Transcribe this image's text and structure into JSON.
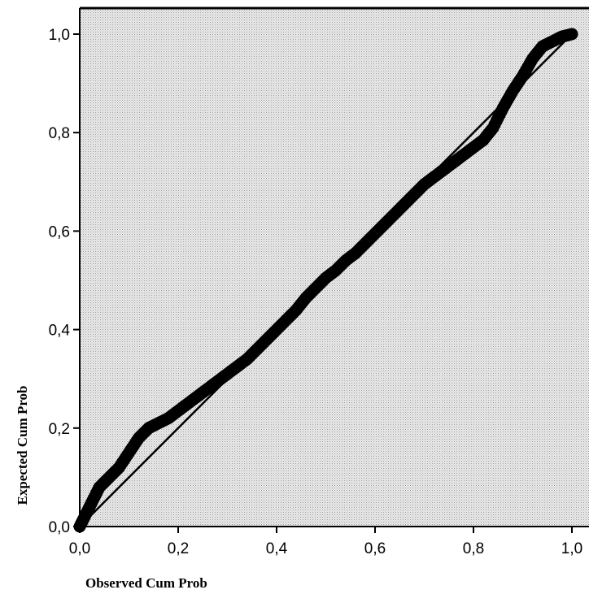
{
  "chart_data": {
    "type": "scatter",
    "title": "",
    "xlabel": "Observed Cum Prob",
    "ylabel": "Expected Cum Prob",
    "xlim": [
      0.0,
      1.0
    ],
    "ylim": [
      0.0,
      1.0
    ],
    "x_ticks": [
      "0,0",
      "0,2",
      "0,4",
      "0,6",
      "0,8",
      "1,0"
    ],
    "y_ticks": [
      "0,0",
      "0,2",
      "0,4",
      "0,6",
      "0,8",
      "1,0"
    ],
    "grid": false,
    "legend": "none",
    "reference_line": {
      "from": [
        0.0,
        0.0
      ],
      "to": [
        1.0,
        1.0
      ]
    },
    "series": [
      {
        "points": [
          [
            0.0,
            0.0
          ],
          [
            0.01,
            0.02
          ],
          [
            0.02,
            0.04
          ],
          [
            0.03,
            0.06
          ],
          [
            0.04,
            0.08
          ],
          [
            0.06,
            0.1
          ],
          [
            0.08,
            0.12
          ],
          [
            0.1,
            0.15
          ],
          [
            0.12,
            0.18
          ],
          [
            0.14,
            0.2
          ],
          [
            0.16,
            0.21
          ],
          [
            0.18,
            0.22
          ],
          [
            0.2,
            0.235
          ],
          [
            0.22,
            0.25
          ],
          [
            0.24,
            0.265
          ],
          [
            0.26,
            0.28
          ],
          [
            0.28,
            0.295
          ],
          [
            0.3,
            0.31
          ],
          [
            0.32,
            0.325
          ],
          [
            0.34,
            0.34
          ],
          [
            0.36,
            0.36
          ],
          [
            0.38,
            0.38
          ],
          [
            0.4,
            0.4
          ],
          [
            0.42,
            0.42
          ],
          [
            0.44,
            0.44
          ],
          [
            0.46,
            0.465
          ],
          [
            0.48,
            0.485
          ],
          [
            0.5,
            0.505
          ],
          [
            0.52,
            0.52
          ],
          [
            0.54,
            0.54
          ],
          [
            0.56,
            0.555
          ],
          [
            0.58,
            0.575
          ],
          [
            0.6,
            0.595
          ],
          [
            0.62,
            0.615
          ],
          [
            0.64,
            0.635
          ],
          [
            0.66,
            0.655
          ],
          [
            0.68,
            0.675
          ],
          [
            0.7,
            0.695
          ],
          [
            0.72,
            0.71
          ],
          [
            0.74,
            0.725
          ],
          [
            0.76,
            0.74
          ],
          [
            0.78,
            0.755
          ],
          [
            0.8,
            0.77
          ],
          [
            0.82,
            0.785
          ],
          [
            0.84,
            0.81
          ],
          [
            0.86,
            0.85
          ],
          [
            0.88,
            0.885
          ],
          [
            0.9,
            0.915
          ],
          [
            0.92,
            0.95
          ],
          [
            0.94,
            0.975
          ],
          [
            0.96,
            0.985
          ],
          [
            0.98,
            0.995
          ],
          [
            1.0,
            1.0
          ]
        ]
      }
    ],
    "colors": {
      "plot_background": "#e3e3e3",
      "points": "#000000",
      "reference_line": "#000000"
    }
  }
}
